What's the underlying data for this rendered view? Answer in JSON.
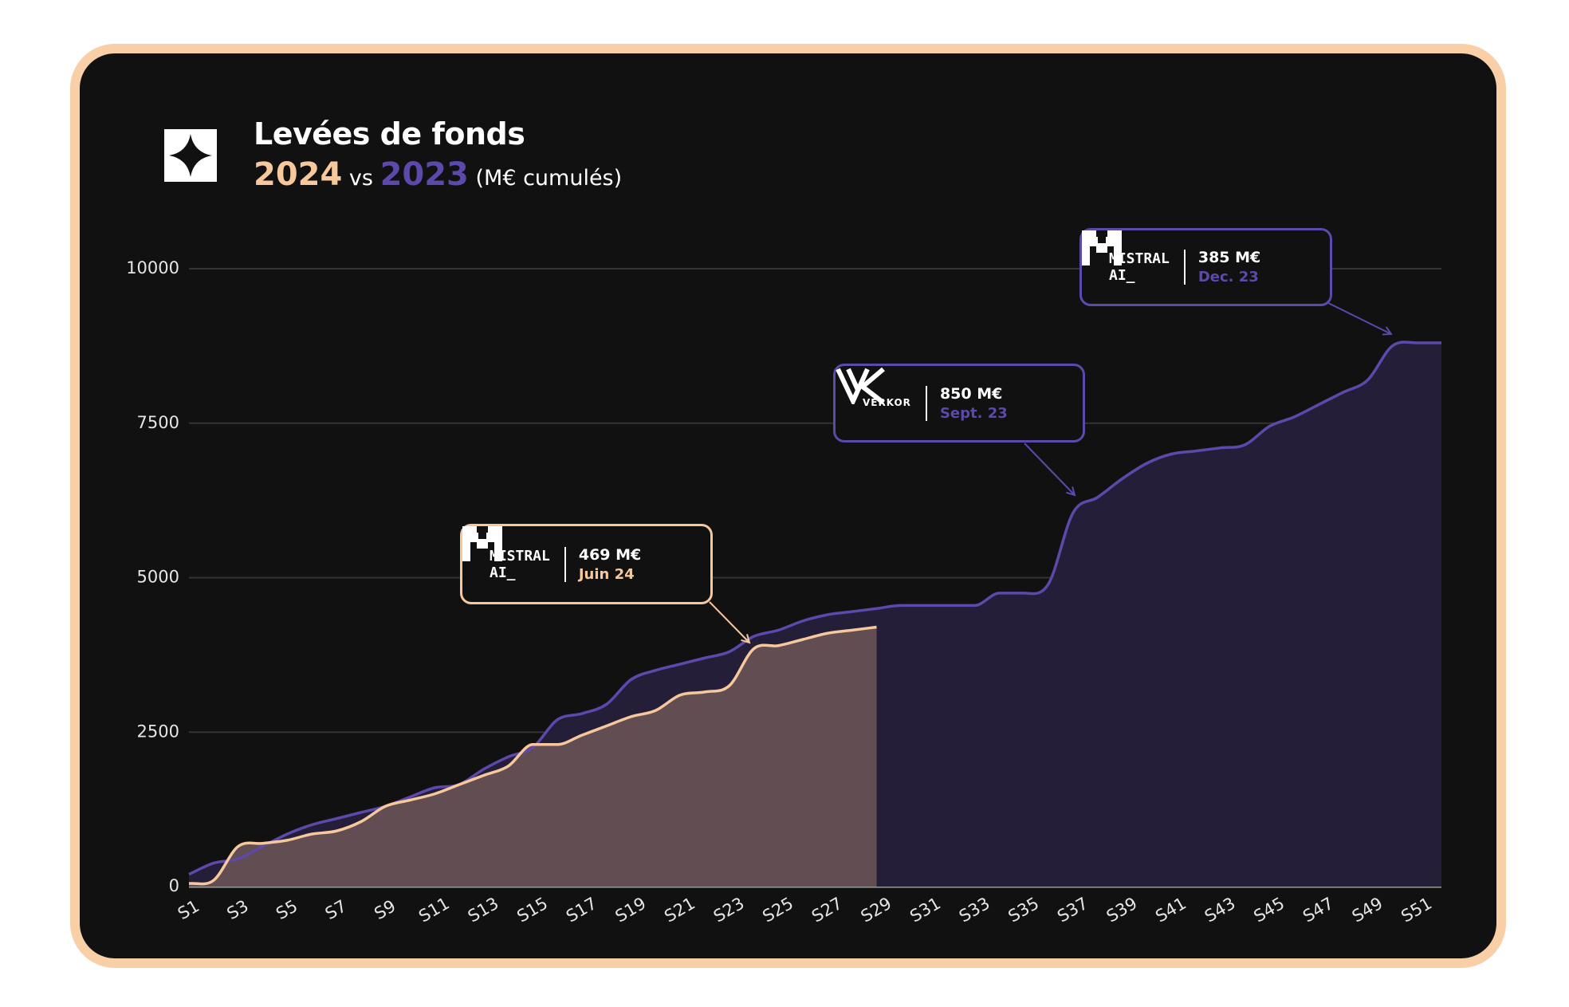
{
  "chart_data": {
    "type": "area",
    "title": "Levées de fonds",
    "subtitle_connector": "vs",
    "unit_note": "(M€ cumulés)",
    "categories": [
      "S1",
      null,
      "S3",
      null,
      "S5",
      null,
      "S7",
      null,
      "S9",
      null,
      "S11",
      null,
      "S13",
      null,
      "S15",
      null,
      "S17",
      null,
      "S19",
      null,
      "S21",
      null,
      "S23",
      null,
      "S25",
      null,
      "S27",
      null,
      "S29",
      null,
      "S31",
      null,
      "S33",
      null,
      "S35",
      null,
      "S37",
      null,
      "S39",
      null,
      "S41",
      null,
      "S43",
      null,
      "S45",
      null,
      "S47",
      null,
      "S49",
      null,
      "S51",
      null
    ],
    "series": [
      {
        "name": "2024",
        "color": "#f7c89c",
        "fill": "#624e52",
        "values": [
          50,
          100,
          650,
          700,
          750,
          850,
          900,
          1050,
          1300,
          1400,
          1500,
          1650,
          1800,
          1950,
          2300,
          2300,
          2450,
          2600,
          2750,
          2850,
          3100,
          3150,
          3250,
          3850,
          3900,
          4000,
          4100,
          4150,
          4200,
          null,
          null,
          null,
          null,
          null,
          null,
          null,
          null,
          null,
          null,
          null,
          null,
          null,
          null,
          null,
          null,
          null,
          null,
          null,
          null,
          null,
          null,
          null
        ]
      },
      {
        "name": "2023",
        "color": "#5d48ab",
        "fill": "#251e38",
        "values": [
          200,
          380,
          450,
          650,
          850,
          1000,
          1100,
          1200,
          1300,
          1450,
          1600,
          1650,
          1900,
          2100,
          2250,
          2700,
          2800,
          2950,
          3350,
          3500,
          3600,
          3700,
          3800,
          4050,
          4150,
          4300,
          4400,
          4450,
          4500,
          4550,
          4550,
          4550,
          4550,
          4750,
          4750,
          4900,
          6050,
          6300,
          6600,
          6850,
          7000,
          7050,
          7100,
          7150,
          7450,
          7600,
          7800,
          8000,
          8200,
          8750,
          8800,
          8800
        ]
      }
    ],
    "ylim": [
      0,
      10000
    ],
    "yticks": [
      0,
      2500,
      5000,
      7500,
      10000
    ],
    "grid": true,
    "annotations": [
      {
        "logo": [
          "MISTRAL",
          "AI_"
        ],
        "amount": "469 M€",
        "date": "Juin 24",
        "color": "#f7c89c"
      },
      {
        "logo": [
          "VERKOR"
        ],
        "amount": "850 M€",
        "date": "Sept. 23",
        "color": "#5d48ab"
      },
      {
        "logo": [
          "MISTRAL",
          "AI_"
        ],
        "amount": "385 M€",
        "date": "Dec. 23",
        "color": "#5d48ab"
      }
    ]
  }
}
